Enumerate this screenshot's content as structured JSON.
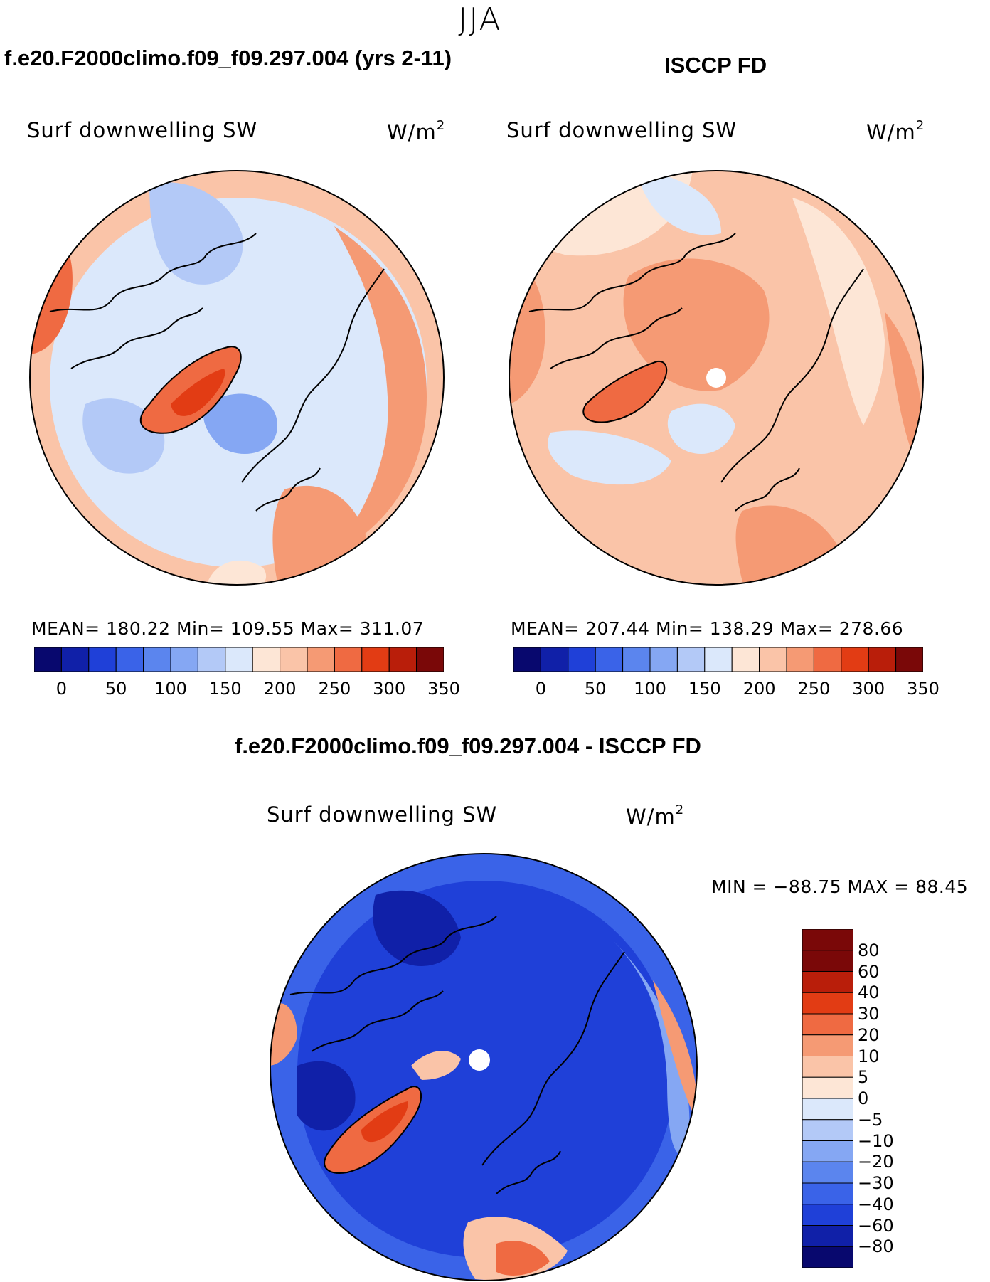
{
  "season": "JJA",
  "panels": [
    {
      "title": "f.e20.F2000climo.f09_f09.297.004 (yrs 2-11)",
      "variable": "Surf  downwelling  SW",
      "units_main": "W/m",
      "units_sup": "2",
      "stats_text": "MEAN= 180.22   Min= 109.55   Max= 311.07",
      "colorbar_ticks": [
        "0",
        "50",
        "100",
        "150",
        "200",
        "250",
        "300",
        "350"
      ]
    },
    {
      "title": "ISCCP FD",
      "variable": "Surf  downwelling  SW",
      "units_main": "W/m",
      "units_sup": "2",
      "stats_text": "MEAN= 207.44   Min= 138.29   Max= 278.66",
      "colorbar_ticks": [
        "0",
        "50",
        "100",
        "150",
        "200",
        "250",
        "300",
        "350"
      ]
    }
  ],
  "diff_panel": {
    "title": "f.e20.F2000climo.f09_f09.297.004 - ISCCP FD",
    "variable": "Surf  downwelling  SW",
    "units_main": "W/m",
    "units_sup": "2",
    "minmax_text": "MIN = −88.75  MAX =   88.45",
    "colorbar_labels": [
      "80",
      "60",
      "40",
      "30",
      "20",
      "10",
      "5",
      "0",
      "−5",
      "−10",
      "−20",
      "−30",
      "−40",
      "−60",
      "−80"
    ]
  },
  "colors": {
    "abs_scale": [
      "#08086e",
      "#1020a8",
      "#1f40d8",
      "#3a63e8",
      "#5b85ee",
      "#85a7f3",
      "#b3c9f7",
      "#dbe8fb",
      "#fde6d6",
      "#fac4a8",
      "#f59a74",
      "#ef6a42",
      "#e23c14",
      "#b91e0a",
      "#7a0808"
    ],
    "diff_scale": [
      "#7a0808",
      "#b91e0a",
      "#e23c14",
      "#ef6a42",
      "#f59a74",
      "#fac4a8",
      "#fde6d6",
      "#dbe8fb",
      "#b3c9f7",
      "#85a7f3",
      "#5b85ee",
      "#3a63e8",
      "#1f40d8",
      "#1020a8",
      "#08086e"
    ]
  }
}
